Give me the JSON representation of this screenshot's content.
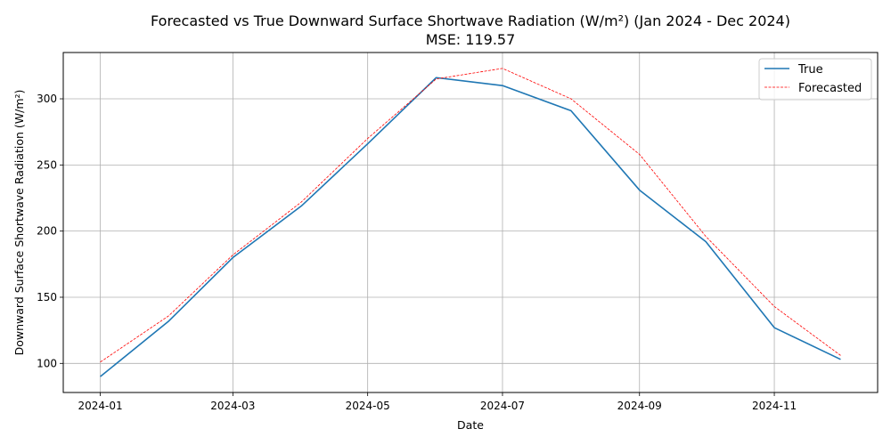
{
  "chart_data": {
    "type": "line",
    "title": "Forecasted vs True Downward Surface Shortwave Radiation (W/m²) (Jan 2024 - Dec 2024)",
    "subtitle": "MSE: 119.57",
    "xlabel": "Date",
    "ylabel": "Downward Surface Shortwave Radiation (W/m²)",
    "x": [
      "2024-01-01",
      "2024-02-01",
      "2024-03-01",
      "2024-04-01",
      "2024-05-01",
      "2024-06-01",
      "2024-07-01",
      "2024-08-01",
      "2024-09-01",
      "2024-10-01",
      "2024-11-01",
      "2024-12-01"
    ],
    "x_ticks": [
      "2024-01",
      "2024-03",
      "2024-05",
      "2024-07",
      "2024-09",
      "2024-11"
    ],
    "y_ticks": [
      100,
      150,
      200,
      250,
      300
    ],
    "ylim": [
      78,
      335
    ],
    "grid": true,
    "legend_position": "top-right",
    "series": [
      {
        "name": "True",
        "color": "#1f77b4",
        "style": "solid",
        "values": [
          90,
          132,
          180,
          219,
          266,
          316,
          310,
          291,
          231,
          192,
          127,
          103
        ]
      },
      {
        "name": "Forecasted",
        "color": "#ff0000",
        "style": "dashed",
        "values": [
          101,
          136,
          182,
          222,
          270,
          315,
          323,
          300,
          258,
          196,
          143,
          106
        ]
      }
    ]
  }
}
